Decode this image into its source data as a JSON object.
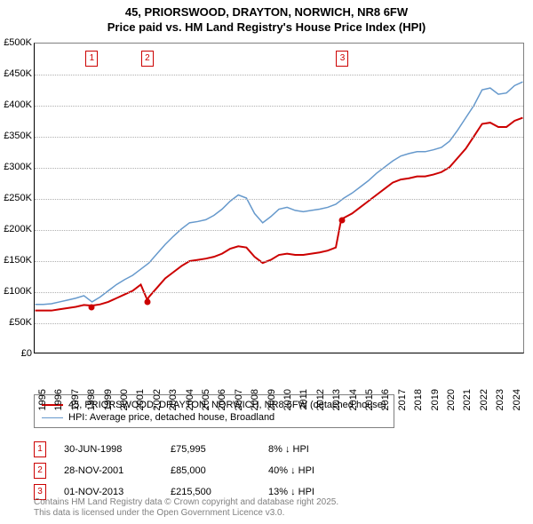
{
  "title": {
    "line1": "45, PRIORSWOOD, DRAYTON, NORWICH, NR8 6FW",
    "line2": "Price paid vs. HM Land Registry's House Price Index (HPI)"
  },
  "chart": {
    "type": "line",
    "background_color": "#ffffff",
    "grid_color": "#b0b0b0",
    "axis_color": "#000000",
    "x_start": 1995,
    "x_end": 2025,
    "xticks": [
      1995,
      1996,
      1997,
      1998,
      1999,
      2000,
      2001,
      2002,
      2003,
      2004,
      2005,
      2006,
      2007,
      2008,
      2009,
      2010,
      2011,
      2012,
      2013,
      2014,
      2015,
      2016,
      2017,
      2018,
      2019,
      2020,
      2021,
      2022,
      2023,
      2024
    ],
    "ylim": [
      0,
      500000
    ],
    "yticks": [
      0,
      50000,
      100000,
      150000,
      200000,
      250000,
      300000,
      350000,
      400000,
      450000,
      500000
    ],
    "ytick_labels": [
      "£0",
      "£50K",
      "£100K",
      "£150K",
      "£200K",
      "£250K",
      "£300K",
      "£350K",
      "£400K",
      "£450K",
      "£500K"
    ],
    "tick_fontsize": 11,
    "series": [
      {
        "name": "price-paid",
        "label": "45, PRIORSWOOD, DRAYTON, NORWICH, NR8 6FW (detached house)",
        "color": "#cc0000",
        "line_width": 2,
        "data": [
          [
            1995.0,
            68000
          ],
          [
            1995.5,
            68000
          ],
          [
            1996.0,
            68000
          ],
          [
            1996.5,
            70000
          ],
          [
            1997.0,
            72000
          ],
          [
            1997.5,
            74000
          ],
          [
            1998.0,
            77000
          ],
          [
            1998.5,
            75995
          ],
          [
            1999.0,
            78000
          ],
          [
            1999.5,
            82000
          ],
          [
            2000.0,
            88000
          ],
          [
            2000.5,
            94000
          ],
          [
            2001.0,
            100000
          ],
          [
            2001.5,
            110000
          ],
          [
            2001.9,
            85000
          ],
          [
            2002.0,
            90000
          ],
          [
            2002.5,
            105000
          ],
          [
            2003.0,
            120000
          ],
          [
            2003.5,
            130000
          ],
          [
            2004.0,
            140000
          ],
          [
            2004.5,
            148000
          ],
          [
            2005.0,
            150000
          ],
          [
            2005.5,
            152000
          ],
          [
            2006.0,
            155000
          ],
          [
            2006.5,
            160000
          ],
          [
            2007.0,
            168000
          ],
          [
            2007.5,
            172000
          ],
          [
            2008.0,
            170000
          ],
          [
            2008.5,
            155000
          ],
          [
            2009.0,
            145000
          ],
          [
            2009.5,
            150000
          ],
          [
            2010.0,
            158000
          ],
          [
            2010.5,
            160000
          ],
          [
            2011.0,
            158000
          ],
          [
            2011.5,
            158000
          ],
          [
            2012.0,
            160000
          ],
          [
            2012.5,
            162000
          ],
          [
            2013.0,
            165000
          ],
          [
            2013.5,
            170000
          ],
          [
            2013.83,
            215500
          ],
          [
            2014.0,
            218000
          ],
          [
            2014.5,
            225000
          ],
          [
            2015.0,
            235000
          ],
          [
            2015.5,
            245000
          ],
          [
            2016.0,
            255000
          ],
          [
            2016.5,
            265000
          ],
          [
            2017.0,
            275000
          ],
          [
            2017.5,
            280000
          ],
          [
            2018.0,
            282000
          ],
          [
            2018.5,
            285000
          ],
          [
            2019.0,
            285000
          ],
          [
            2019.5,
            288000
          ],
          [
            2020.0,
            292000
          ],
          [
            2020.5,
            300000
          ],
          [
            2021.0,
            315000
          ],
          [
            2021.5,
            330000
          ],
          [
            2022.0,
            350000
          ],
          [
            2022.5,
            370000
          ],
          [
            2023.0,
            372000
          ],
          [
            2023.5,
            365000
          ],
          [
            2024.0,
            365000
          ],
          [
            2024.5,
            375000
          ],
          [
            2025.0,
            380000
          ]
        ]
      },
      {
        "name": "hpi",
        "label": "HPI: Average price, detached house, Broadland",
        "color": "#6699cc",
        "line_width": 1.5,
        "data": [
          [
            1995.0,
            78000
          ],
          [
            1995.5,
            78000
          ],
          [
            1996.0,
            79000
          ],
          [
            1996.5,
            82000
          ],
          [
            1997.0,
            85000
          ],
          [
            1997.5,
            88000
          ],
          [
            1998.0,
            92000
          ],
          [
            1998.5,
            82000
          ],
          [
            1999.0,
            90000
          ],
          [
            1999.5,
            100000
          ],
          [
            2000.0,
            110000
          ],
          [
            2000.5,
            118000
          ],
          [
            2001.0,
            125000
          ],
          [
            2001.5,
            135000
          ],
          [
            2002.0,
            145000
          ],
          [
            2002.5,
            160000
          ],
          [
            2003.0,
            175000
          ],
          [
            2003.5,
            188000
          ],
          [
            2004.0,
            200000
          ],
          [
            2004.5,
            210000
          ],
          [
            2005.0,
            212000
          ],
          [
            2005.5,
            215000
          ],
          [
            2006.0,
            222000
          ],
          [
            2006.5,
            232000
          ],
          [
            2007.0,
            245000
          ],
          [
            2007.5,
            255000
          ],
          [
            2008.0,
            250000
          ],
          [
            2008.5,
            225000
          ],
          [
            2009.0,
            210000
          ],
          [
            2009.5,
            220000
          ],
          [
            2010.0,
            232000
          ],
          [
            2010.5,
            235000
          ],
          [
            2011.0,
            230000
          ],
          [
            2011.5,
            228000
          ],
          [
            2012.0,
            230000
          ],
          [
            2012.5,
            232000
          ],
          [
            2013.0,
            235000
          ],
          [
            2013.5,
            240000
          ],
          [
            2014.0,
            250000
          ],
          [
            2014.5,
            258000
          ],
          [
            2015.0,
            268000
          ],
          [
            2015.5,
            278000
          ],
          [
            2016.0,
            290000
          ],
          [
            2016.5,
            300000
          ],
          [
            2017.0,
            310000
          ],
          [
            2017.5,
            318000
          ],
          [
            2018.0,
            322000
          ],
          [
            2018.5,
            325000
          ],
          [
            2019.0,
            325000
          ],
          [
            2019.5,
            328000
          ],
          [
            2020.0,
            332000
          ],
          [
            2020.5,
            342000
          ],
          [
            2021.0,
            360000
          ],
          [
            2021.5,
            380000
          ],
          [
            2022.0,
            400000
          ],
          [
            2022.5,
            425000
          ],
          [
            2023.0,
            428000
          ],
          [
            2023.5,
            418000
          ],
          [
            2024.0,
            420000
          ],
          [
            2024.5,
            432000
          ],
          [
            2025.0,
            438000
          ]
        ]
      }
    ],
    "event_markers": [
      {
        "n": "1",
        "year": 1998.5,
        "value": 75995
      },
      {
        "n": "2",
        "year": 2001.9,
        "value": 85000
      },
      {
        "n": "3",
        "year": 2013.83,
        "value": 215500
      }
    ]
  },
  "legend": {
    "rows": [
      {
        "color": "#cc0000",
        "width": 2,
        "label": "45, PRIORSWOOD, DRAYTON, NORWICH, NR8 6FW (detached house)"
      },
      {
        "color": "#6699cc",
        "width": 1.5,
        "label": "HPI: Average price, detached house, Broadland"
      }
    ]
  },
  "sales": [
    {
      "n": "1",
      "date": "30-JUN-1998",
      "price": "£75,995",
      "diff": "8% ↓ HPI"
    },
    {
      "n": "2",
      "date": "28-NOV-2001",
      "price": "£85,000",
      "diff": "40% ↓ HPI"
    },
    {
      "n": "3",
      "date": "01-NOV-2013",
      "price": "£215,500",
      "diff": "13% ↓ HPI"
    }
  ],
  "footnote": {
    "line1": "Contains HM Land Registry data © Crown copyright and database right 2025.",
    "line2": "This data is licensed under the Open Government Licence v3.0."
  }
}
